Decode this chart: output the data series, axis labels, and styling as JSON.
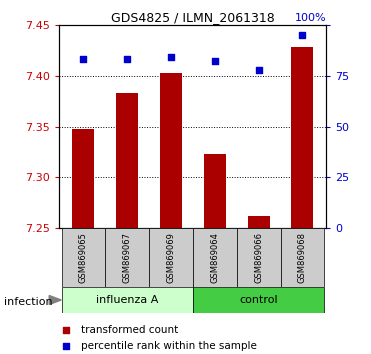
{
  "title": "GDS4825 / ILMN_2061318",
  "samples": [
    "GSM869065",
    "GSM869067",
    "GSM869069",
    "GSM869064",
    "GSM869066",
    "GSM869068"
  ],
  "bar_values": [
    7.348,
    7.383,
    7.403,
    7.323,
    7.262,
    7.428
  ],
  "percentile_values": [
    83,
    83,
    84,
    82,
    78,
    95
  ],
  "ylim_left": [
    7.25,
    7.45
  ],
  "ylim_right": [
    0,
    100
  ],
  "yticks_left": [
    7.25,
    7.3,
    7.35,
    7.4,
    7.45
  ],
  "yticks_right": [
    0,
    25,
    50,
    75,
    100
  ],
  "bar_color": "#aa0000",
  "dot_color": "#0000cc",
  "group_bg_light": "#ccffcc",
  "group_bg_dark": "#44cc44",
  "sample_bg": "#cccccc",
  "legend_labels": [
    "transformed count",
    "percentile rank within the sample"
  ],
  "infection_label": "infection",
  "group_labels": [
    "influenza A",
    "control"
  ]
}
